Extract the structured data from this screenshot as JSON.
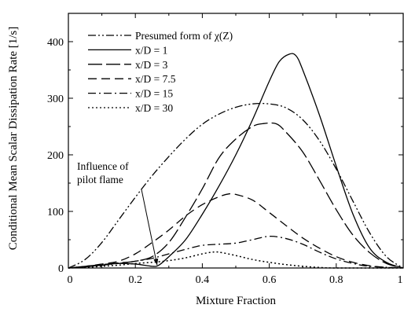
{
  "chart_data": {
    "type": "line",
    "xlabel": "Mixture Fraction",
    "ylabel": "Conditional Mean Scalar Dissipation Rate [1/s]",
    "xlim": [
      0,
      1
    ],
    "ylim": [
      0,
      450
    ],
    "xticks": [
      0,
      0.2,
      0.4,
      0.6,
      0.8,
      1
    ],
    "xtick_labels": [
      "0",
      "0.2",
      "0.4",
      "0.6",
      "0.8",
      "1"
    ],
    "yticks": [
      0,
      100,
      200,
      300,
      400
    ],
    "ytick_labels": [
      "0",
      "100",
      "200",
      "300",
      "400"
    ],
    "grid": false,
    "legend_position": "top-left",
    "series": [
      {
        "name": "Presumed form of χ(Z)",
        "style": "dash-dot-dot",
        "x": [
          0,
          0.05,
          0.1,
          0.15,
          0.2,
          0.25,
          0.3,
          0.35,
          0.4,
          0.45,
          0.5,
          0.55,
          0.6,
          0.65,
          0.7,
          0.75,
          0.8,
          0.85,
          0.9,
          0.95,
          1.0
        ],
        "y": [
          0,
          15,
          45,
          85,
          125,
          163,
          197,
          228,
          254,
          272,
          284,
          290,
          290,
          283,
          262,
          225,
          175,
          118,
          62,
          20,
          0
        ]
      },
      {
        "name": "x/D = 1",
        "style": "solid",
        "x": [
          0,
          0.05,
          0.1,
          0.15,
          0.2,
          0.25,
          0.27,
          0.3,
          0.35,
          0.4,
          0.45,
          0.5,
          0.55,
          0.6,
          0.63,
          0.66,
          0.68,
          0.7,
          0.75,
          0.8,
          0.85,
          0.9,
          0.95,
          1.0
        ],
        "y": [
          0,
          2,
          5,
          8,
          7,
          3,
          5,
          20,
          50,
          95,
          145,
          200,
          262,
          330,
          365,
          378,
          375,
          350,
          270,
          180,
          95,
          35,
          10,
          0
        ]
      },
      {
        "name": "x/D = 3",
        "style": "long-dash",
        "x": [
          0,
          0.05,
          0.1,
          0.15,
          0.2,
          0.25,
          0.3,
          0.35,
          0.4,
          0.45,
          0.5,
          0.55,
          0.58,
          0.62,
          0.65,
          0.7,
          0.75,
          0.8,
          0.85,
          0.9,
          0.95,
          1.0
        ],
        "y": [
          0,
          3,
          6,
          9,
          12,
          20,
          45,
          90,
          140,
          195,
          228,
          250,
          255,
          255,
          240,
          205,
          155,
          103,
          58,
          27,
          8,
          0
        ]
      },
      {
        "name": "x/D = 7.5",
        "style": "dash",
        "x": [
          0,
          0.05,
          0.1,
          0.15,
          0.2,
          0.25,
          0.3,
          0.35,
          0.4,
          0.45,
          0.48,
          0.5,
          0.55,
          0.6,
          0.65,
          0.7,
          0.75,
          0.8,
          0.85,
          0.9,
          0.95,
          1.0
        ],
        "y": [
          0,
          3,
          7,
          12,
          25,
          45,
          67,
          92,
          112,
          126,
          131,
          130,
          120,
          98,
          75,
          53,
          35,
          20,
          10,
          4,
          1,
          0
        ]
      },
      {
        "name": "x/D = 15",
        "style": "dash-dot",
        "x": [
          0,
          0.05,
          0.1,
          0.15,
          0.2,
          0.25,
          0.3,
          0.35,
          0.4,
          0.45,
          0.5,
          0.55,
          0.6,
          0.65,
          0.7,
          0.75,
          0.8,
          0.85,
          0.9,
          1.0
        ],
        "y": [
          0,
          2,
          5,
          8,
          12,
          17,
          25,
          33,
          40,
          42,
          44,
          50,
          56,
          52,
          42,
          28,
          16,
          8,
          3,
          0
        ]
      },
      {
        "name": "x/D = 30",
        "style": "dotted",
        "x": [
          0,
          0.05,
          0.1,
          0.15,
          0.2,
          0.25,
          0.3,
          0.35,
          0.4,
          0.43,
          0.45,
          0.5,
          0.55,
          0.6,
          0.65,
          0.7,
          0.75,
          0.8,
          1.0
        ],
        "y": [
          0,
          1,
          3,
          5,
          8,
          10,
          13,
          18,
          25,
          28,
          28,
          22,
          15,
          10,
          6,
          3,
          1,
          0,
          0
        ]
      }
    ],
    "annotations": [
      {
        "text_lines": [
          "Influence of",
          "pilot flame"
        ],
        "arrow_to": {
          "x": 0.265,
          "y": 5
        }
      }
    ]
  }
}
